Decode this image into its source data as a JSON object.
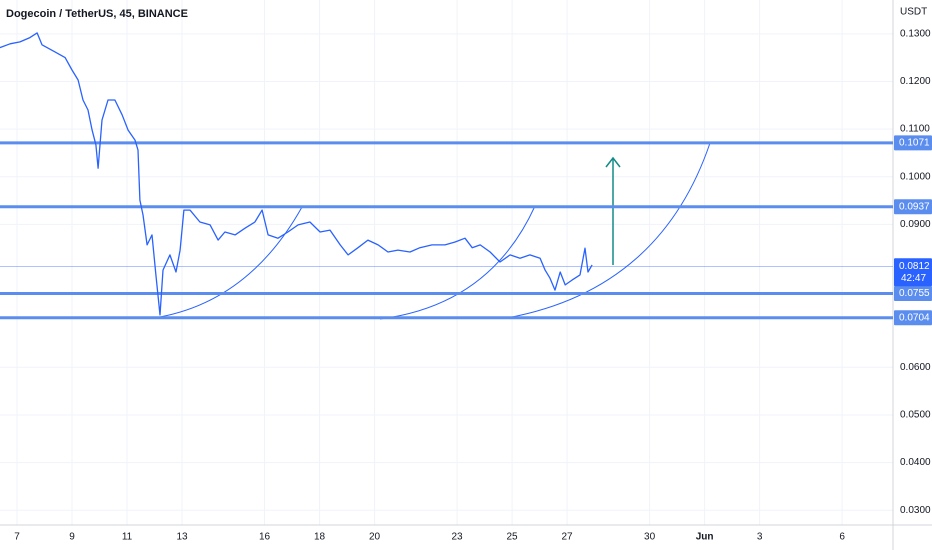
{
  "chart_data": {
    "type": "line",
    "title": "Dogecoin / TetherUS, 45, BINANCE",
    "y_axis_label": "USDT",
    "color": "#2962ff",
    "x": [
      6.38,
      6.75,
      7.11,
      7.47,
      7.73,
      7.91,
      8.38,
      8.75,
      9.0,
      9.22,
      9.4,
      9.58,
      9.73,
      9.87,
      9.95,
      10.09,
      10.31,
      10.56,
      10.82,
      11.04,
      11.29,
      11.4,
      11.47,
      11.58,
      11.73,
      11.91,
      12.05,
      12.2,
      12.31,
      12.56,
      12.78,
      12.93,
      13.07,
      13.29,
      13.65,
      14.02,
      14.31,
      14.56,
      14.93,
      15.29,
      15.65,
      15.91,
      16.13,
      16.49,
      16.85,
      17.22,
      17.65,
      18.02,
      18.38,
      18.75,
      19.04,
      19.4,
      19.76,
      20.13,
      20.49,
      20.85,
      21.29,
      21.65,
      22.09,
      22.56,
      22.93,
      23.29,
      23.55,
      23.84,
      24.2,
      24.56,
      24.93,
      25.29,
      25.65,
      26.02,
      26.2,
      26.38,
      26.56,
      26.75,
      26.93,
      27.18,
      27.47,
      27.65,
      27.76,
      27.91
    ],
    "values": [
      0.1271,
      0.1279,
      0.1283,
      0.1292,
      0.1302,
      0.1277,
      0.1262,
      0.125,
      0.1224,
      0.1203,
      0.1161,
      0.114,
      0.1098,
      0.1067,
      0.1018,
      0.1119,
      0.1161,
      0.1161,
      0.113,
      0.1098,
      0.1077,
      0.1056,
      0.0951,
      0.092,
      0.0857,
      0.0878,
      0.0794,
      0.071,
      0.0804,
      0.0836,
      0.08,
      0.0846,
      0.093,
      0.093,
      0.0905,
      0.0899,
      0.0867,
      0.0884,
      0.0878,
      0.0892,
      0.0905,
      0.093,
      0.0878,
      0.0871,
      0.0884,
      0.0899,
      0.0905,
      0.0884,
      0.0888,
      0.0857,
      0.0836,
      0.0851,
      0.0867,
      0.0857,
      0.0842,
      0.0846,
      0.0842,
      0.0851,
      0.0857,
      0.0857,
      0.0863,
      0.0871,
      0.0851,
      0.0857,
      0.0842,
      0.0821,
      0.0836,
      0.0829,
      0.0836,
      0.0829,
      0.0804,
      0.0787,
      0.0762,
      0.08,
      0.0773,
      0.0783,
      0.0794,
      0.085,
      0.08,
      0.0815
    ],
    "horizontal_lines": [
      0.1071,
      0.0937,
      0.0755,
      0.0704
    ],
    "level_color": "#5b8def",
    "last_price": 0.0812,
    "countdown": "42:47",
    "xlim": [
      6.382,
      38.85
    ],
    "ylim": [
      0.0269,
      0.1371
    ],
    "xticks": [
      7,
      9,
      11,
      13,
      16,
      18,
      20,
      23,
      25,
      27,
      30,
      {
        "value": 32,
        "label": "Jun"
      },
      {
        "value": 34,
        "label": "3"
      },
      {
        "value": 37,
        "label": "6"
      }
    ],
    "yticks": [
      {
        "value": 0.13,
        "label": "0.1300"
      },
      {
        "value": 0.12,
        "label": "0.1200"
      },
      {
        "value": 0.11,
        "label": "0.1100"
      },
      {
        "value": 0.1,
        "label": "0.1000"
      },
      {
        "value": 0.09,
        "label": "0.0900"
      },
      {
        "value": 0.06,
        "label": "0.0600"
      },
      {
        "value": 0.05,
        "label": "0.0500"
      },
      {
        "value": 0.04,
        "label": "0.0400"
      },
      {
        "value": 0.03,
        "label": "0.0300"
      }
    ]
  }
}
